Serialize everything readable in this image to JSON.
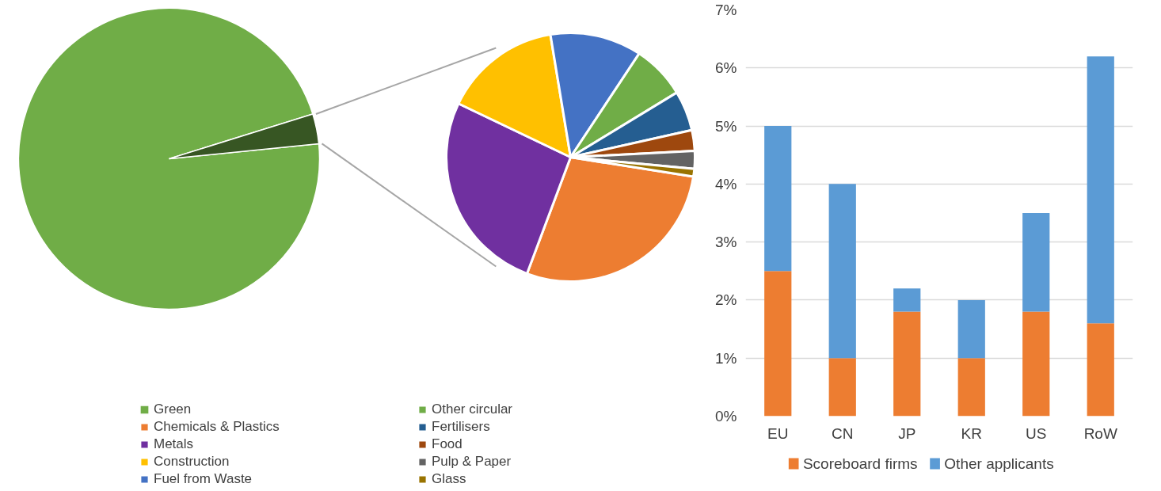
{
  "chart_data": [
    {
      "type": "pie",
      "categories": [
        "Green",
        null
      ],
      "values": [
        96.8,
        3.2
      ],
      "colors": [
        "#70ad47",
        "#375623"
      ],
      "legend": "bottom"
    },
    {
      "type": "pie",
      "categories": [
        "Chemicals & Plastics",
        "Metals",
        "Construction",
        "Fuel from Waste",
        "Other circular",
        "Fertilisers",
        "Food",
        "Pulp & Paper",
        "Glass"
      ],
      "values": [
        28.2,
        26.4,
        15.3,
        11.9,
        7.0,
        5.2,
        2.7,
        2.3,
        1.0
      ],
      "colors": [
        "#ed7d31",
        "#7030a0",
        "#ffc000",
        "#4472c4",
        "#70ad47",
        "#255e91",
        "#9e480e",
        "#636363",
        "#997300"
      ],
      "legend": "bottom"
    },
    {
      "type": "bar",
      "stacked": true,
      "categories": [
        "EU",
        "CN",
        "JP",
        "KR",
        "US",
        "RoW"
      ],
      "series": [
        {
          "name": "Scoreboard firms",
          "color": "#ed7d31",
          "values": [
            2.5,
            1.0,
            1.8,
            1.0,
            1.8,
            1.6
          ]
        },
        {
          "name": "Other applicants",
          "color": "#5b9bd5",
          "values": [
            2.5,
            3.0,
            0.4,
            1.0,
            1.7,
            4.6
          ]
        }
      ],
      "ylim": [
        0,
        7
      ],
      "yticks": [
        {
          "value": 0,
          "label": "0%"
        },
        {
          "value": 1,
          "label": "1%"
        },
        {
          "value": 2,
          "label": "2%"
        },
        {
          "value": 3,
          "label": "3%"
        },
        {
          "value": 4,
          "label": "4%"
        },
        {
          "value": 5,
          "label": "5%"
        },
        {
          "value": 6,
          "label": "6%"
        },
        {
          "value": 7,
          "label": "7%"
        }
      ],
      "grid": "y",
      "legend": "bottom"
    }
  ]
}
